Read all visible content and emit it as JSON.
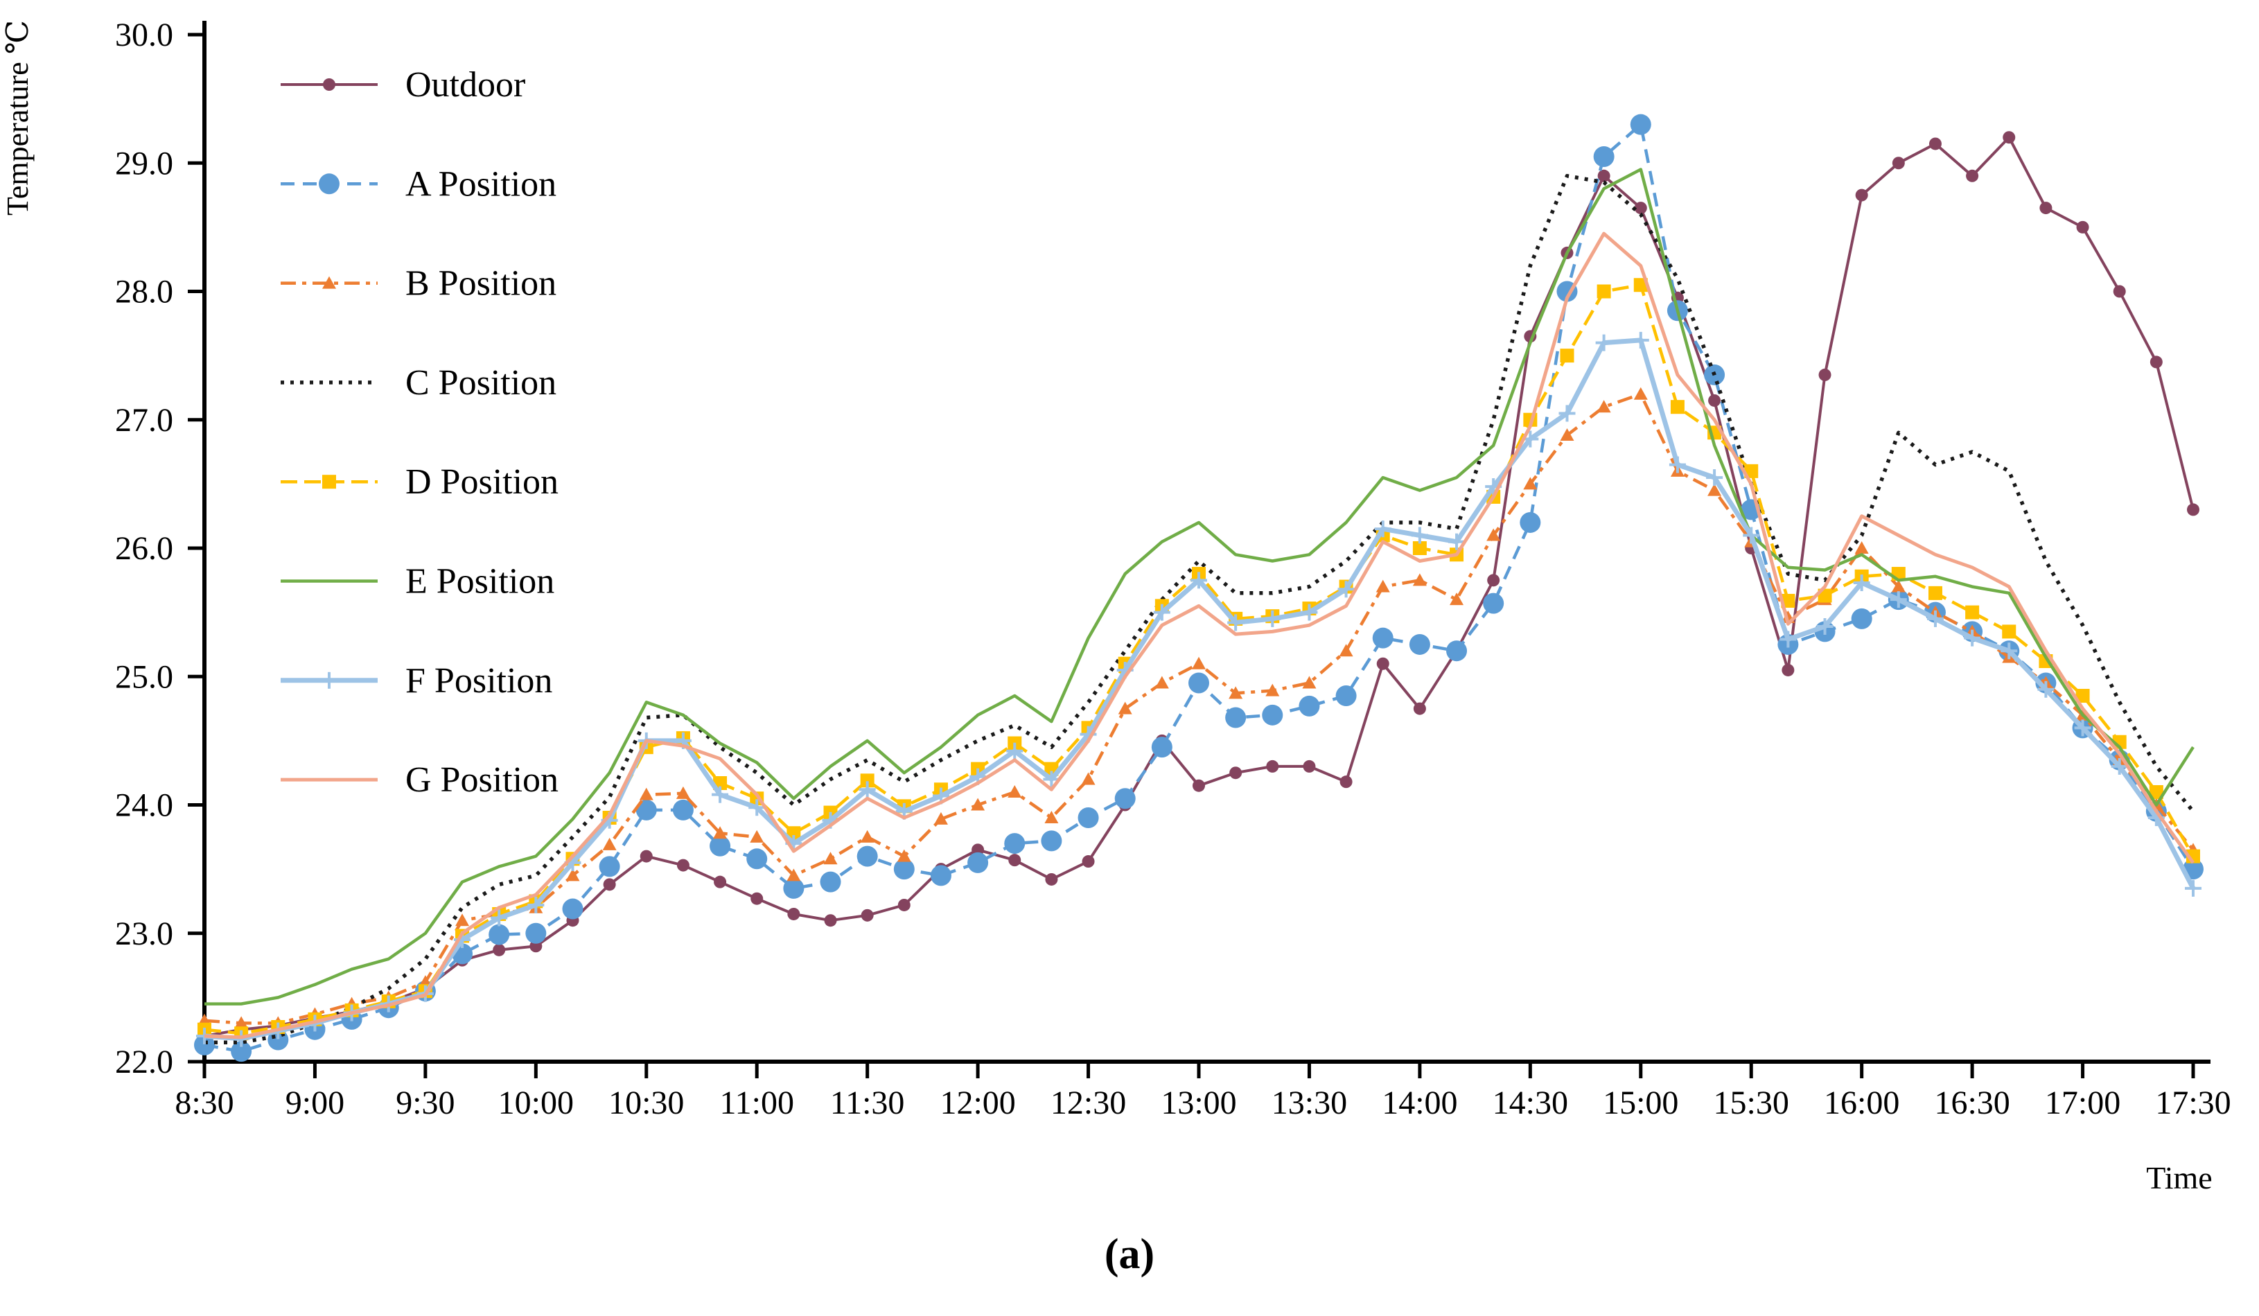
{
  "caption": "(a)",
  "chart_data": {
    "type": "line",
    "title": "",
    "xlabel": "Time",
    "ylabel": "Temperature ℃",
    "ylim": [
      22.0,
      30.0
    ],
    "y_tick_labels": [
      "22.0",
      "23.0",
      "24.0",
      "25.0",
      "26.0",
      "27.0",
      "28.0",
      "29.0",
      "30.0"
    ],
    "x_tick_labels": [
      "8:30",
      "9:00",
      "9:30",
      "10:00",
      "10:30",
      "11:00",
      "11:30",
      "12:00",
      "12:30",
      "13:00",
      "13:30",
      "14:00",
      "14:30",
      "15:00",
      "15:30",
      "16:00",
      "16:30",
      "17:00",
      "17:30"
    ],
    "grid": false,
    "legend_position": "upper-left-vertical",
    "x": [
      "8:30",
      "8:40",
      "8:50",
      "9:00",
      "9:10",
      "9:20",
      "9:30",
      "9:40",
      "9:50",
      "10:00",
      "10:10",
      "10:20",
      "10:30",
      "10:40",
      "10:50",
      "11:00",
      "11:10",
      "11:20",
      "11:30",
      "11:40",
      "11:50",
      "12:00",
      "12:10",
      "12:20",
      "12:30",
      "12:40",
      "12:50",
      "13:00",
      "13:10",
      "13:20",
      "13:30",
      "13:40",
      "13:50",
      "14:00",
      "14:10",
      "14:20",
      "14:30",
      "14:40",
      "14:50",
      "15:00",
      "15:10",
      "15:20",
      "15:30",
      "15:40",
      "15:50",
      "16:00",
      "16:10",
      "16:20",
      "16:30",
      "16:40",
      "16:50",
      "17:00",
      "17:10",
      "17:20",
      "17:30"
    ],
    "series": [
      {
        "name": "Outdoor",
        "color": "#84435E",
        "dash": "",
        "width": 4,
        "marker": "dot",
        "values": [
          22.2,
          22.25,
          22.28,
          22.34,
          22.39,
          22.46,
          22.57,
          22.79,
          22.87,
          22.9,
          23.1,
          23.38,
          23.6,
          23.53,
          23.4,
          23.27,
          23.15,
          23.1,
          23.14,
          23.22,
          23.5,
          23.65,
          23.57,
          23.42,
          23.56,
          24.0,
          24.5,
          24.15,
          24.25,
          24.3,
          24.3,
          24.18,
          25.1,
          24.75,
          25.2,
          25.75,
          27.65,
          28.3,
          28.9,
          28.65,
          27.95,
          27.15,
          26.0,
          25.05,
          27.35,
          28.75,
          29.0,
          29.15,
          28.9,
          29.2,
          28.65,
          28.5,
          28.0,
          27.45,
          26.3
        ]
      },
      {
        "name": "A Position",
        "color": "#5B9BD5",
        "dash": "20,12",
        "width": 4.5,
        "marker": "circle",
        "values": [
          22.13,
          22.08,
          22.17,
          22.25,
          22.33,
          22.42,
          22.55,
          22.84,
          22.99,
          23.0,
          23.19,
          23.52,
          23.96,
          23.96,
          23.68,
          23.58,
          23.35,
          23.4,
          23.6,
          23.5,
          23.45,
          23.55,
          23.7,
          23.72,
          23.9,
          24.05,
          24.45,
          24.95,
          24.68,
          24.7,
          24.77,
          24.85,
          25.3,
          25.25,
          25.2,
          25.57,
          26.2,
          28.0,
          29.05,
          29.3,
          27.85,
          27.35,
          26.3,
          25.25,
          25.35,
          25.45,
          25.6,
          25.5,
          25.35,
          25.2,
          24.95,
          24.6,
          24.35,
          23.95,
          23.5
        ]
      },
      {
        "name": "B Position",
        "color": "#ED7D31",
        "dash": "22,9,6,9",
        "width": 4.5,
        "marker": "triangle",
        "values": [
          22.32,
          22.3,
          22.3,
          22.37,
          22.45,
          22.5,
          22.62,
          23.1,
          23.15,
          23.2,
          23.45,
          23.69,
          24.08,
          24.09,
          23.78,
          23.75,
          23.45,
          23.58,
          23.75,
          23.6,
          23.89,
          24.0,
          24.1,
          23.9,
          24.2,
          24.75,
          24.95,
          25.1,
          24.87,
          24.89,
          24.95,
          25.2,
          25.7,
          25.75,
          25.6,
          26.1,
          26.5,
          26.88,
          27.1,
          27.2,
          26.6,
          26.45,
          26.05,
          25.46,
          25.6,
          26.0,
          25.7,
          25.5,
          25.35,
          25.15,
          24.95,
          24.7,
          24.35,
          24.0,
          23.65
        ]
      },
      {
        "name": "C Position",
        "color": "#1a1a1a",
        "dash": "5,9",
        "width": 5.5,
        "marker": "none",
        "values": [
          22.15,
          22.15,
          22.2,
          22.3,
          22.42,
          22.57,
          22.8,
          23.2,
          23.38,
          23.45,
          23.75,
          24.06,
          24.68,
          24.7,
          24.45,
          24.25,
          24.0,
          24.2,
          24.35,
          24.18,
          24.35,
          24.5,
          24.62,
          24.45,
          24.8,
          25.2,
          25.6,
          25.9,
          25.65,
          25.65,
          25.7,
          25.9,
          26.2,
          26.2,
          26.15,
          27.0,
          28.2,
          28.9,
          28.85,
          28.6,
          28.1,
          27.35,
          26.5,
          25.8,
          25.75,
          26.1,
          26.9,
          26.65,
          26.75,
          26.6,
          25.9,
          25.4,
          24.8,
          24.3,
          23.95
        ]
      },
      {
        "name": "D Position",
        "color": "#FFC000",
        "dash": "24,10",
        "width": 4.5,
        "marker": "square",
        "values": [
          22.25,
          22.22,
          22.27,
          22.33,
          22.4,
          22.47,
          22.55,
          22.98,
          23.15,
          23.25,
          23.58,
          23.9,
          24.45,
          24.52,
          24.17,
          24.05,
          23.78,
          23.94,
          24.19,
          23.99,
          24.12,
          24.28,
          24.48,
          24.28,
          24.6,
          25.1,
          25.55,
          25.8,
          25.45,
          25.47,
          25.53,
          25.7,
          26.1,
          26.0,
          25.95,
          26.4,
          27.0,
          27.5,
          28.0,
          28.05,
          27.1,
          26.9,
          26.6,
          25.59,
          25.63,
          25.78,
          25.8,
          25.65,
          25.5,
          25.35,
          25.12,
          24.85,
          24.49,
          24.1,
          23.6
        ]
      },
      {
        "name": "E Position",
        "color": "#70AD47",
        "dash": "",
        "width": 4.5,
        "marker": "none",
        "values": [
          22.45,
          22.45,
          22.5,
          22.6,
          22.72,
          22.8,
          23.0,
          23.4,
          23.52,
          23.6,
          23.89,
          24.25,
          24.8,
          24.7,
          24.48,
          24.33,
          24.05,
          24.3,
          24.5,
          24.25,
          24.45,
          24.7,
          24.85,
          24.65,
          25.3,
          25.8,
          26.05,
          26.2,
          25.95,
          25.9,
          25.95,
          26.2,
          26.55,
          26.45,
          26.55,
          26.8,
          27.6,
          28.3,
          28.8,
          28.95,
          27.85,
          26.8,
          26.1,
          25.85,
          25.83,
          25.95,
          25.75,
          25.78,
          25.7,
          25.65,
          25.15,
          24.7,
          24.45,
          24.0,
          24.45
        ]
      },
      {
        "name": "F Position",
        "color": "#9DC3E6",
        "dash": "",
        "width": 7,
        "marker": "plus",
        "values": [
          22.2,
          22.18,
          22.24,
          22.3,
          22.38,
          22.45,
          22.53,
          22.95,
          23.12,
          23.22,
          23.55,
          23.88,
          24.5,
          24.5,
          24.08,
          23.98,
          23.7,
          23.88,
          24.12,
          23.95,
          24.07,
          24.22,
          24.42,
          24.2,
          24.55,
          25.05,
          25.5,
          25.75,
          25.42,
          25.45,
          25.5,
          25.68,
          26.15,
          26.1,
          26.05,
          26.48,
          26.85,
          27.05,
          27.6,
          27.62,
          26.65,
          26.55,
          26.1,
          25.29,
          25.39,
          25.73,
          25.6,
          25.45,
          25.3,
          25.2,
          24.9,
          24.6,
          24.3,
          23.9,
          23.35
        ]
      },
      {
        "name": "G Position",
        "color": "#F2A58A",
        "dash": "",
        "width": 5,
        "marker": "none",
        "values": [
          22.2,
          22.19,
          22.25,
          22.31,
          22.38,
          22.44,
          22.52,
          23.0,
          23.2,
          23.3,
          23.6,
          23.92,
          24.5,
          24.46,
          24.36,
          24.08,
          23.64,
          23.84,
          24.05,
          23.9,
          24.02,
          24.17,
          24.35,
          24.12,
          24.5,
          25.0,
          25.4,
          25.55,
          25.33,
          25.35,
          25.4,
          25.55,
          26.05,
          25.9,
          25.95,
          26.4,
          26.95,
          27.95,
          28.45,
          28.2,
          27.35,
          27.0,
          26.5,
          25.41,
          25.7,
          26.25,
          26.1,
          25.95,
          25.85,
          25.7,
          25.2,
          24.75,
          24.4,
          23.95,
          23.55
        ]
      }
    ]
  }
}
